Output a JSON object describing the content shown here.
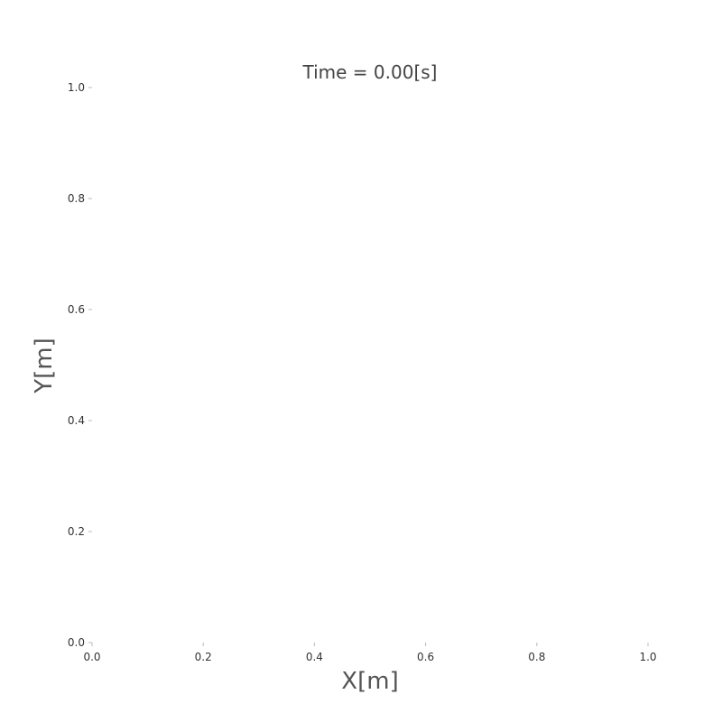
{
  "chart_data": {
    "type": "scatter",
    "title": "Time = 0.00[s]",
    "xlabel": "X[m]",
    "ylabel": "Y[m]",
    "xlim": [
      0.0,
      1.0
    ],
    "ylim": [
      0.0,
      1.0
    ],
    "x_ticks": [
      "0.0",
      "0.2",
      "0.4",
      "0.6",
      "0.8",
      "1.0"
    ],
    "y_ticks": [
      "0.0",
      "0.2",
      "0.4",
      "0.6",
      "0.8",
      "1.0"
    ],
    "grid": false,
    "series": []
  }
}
